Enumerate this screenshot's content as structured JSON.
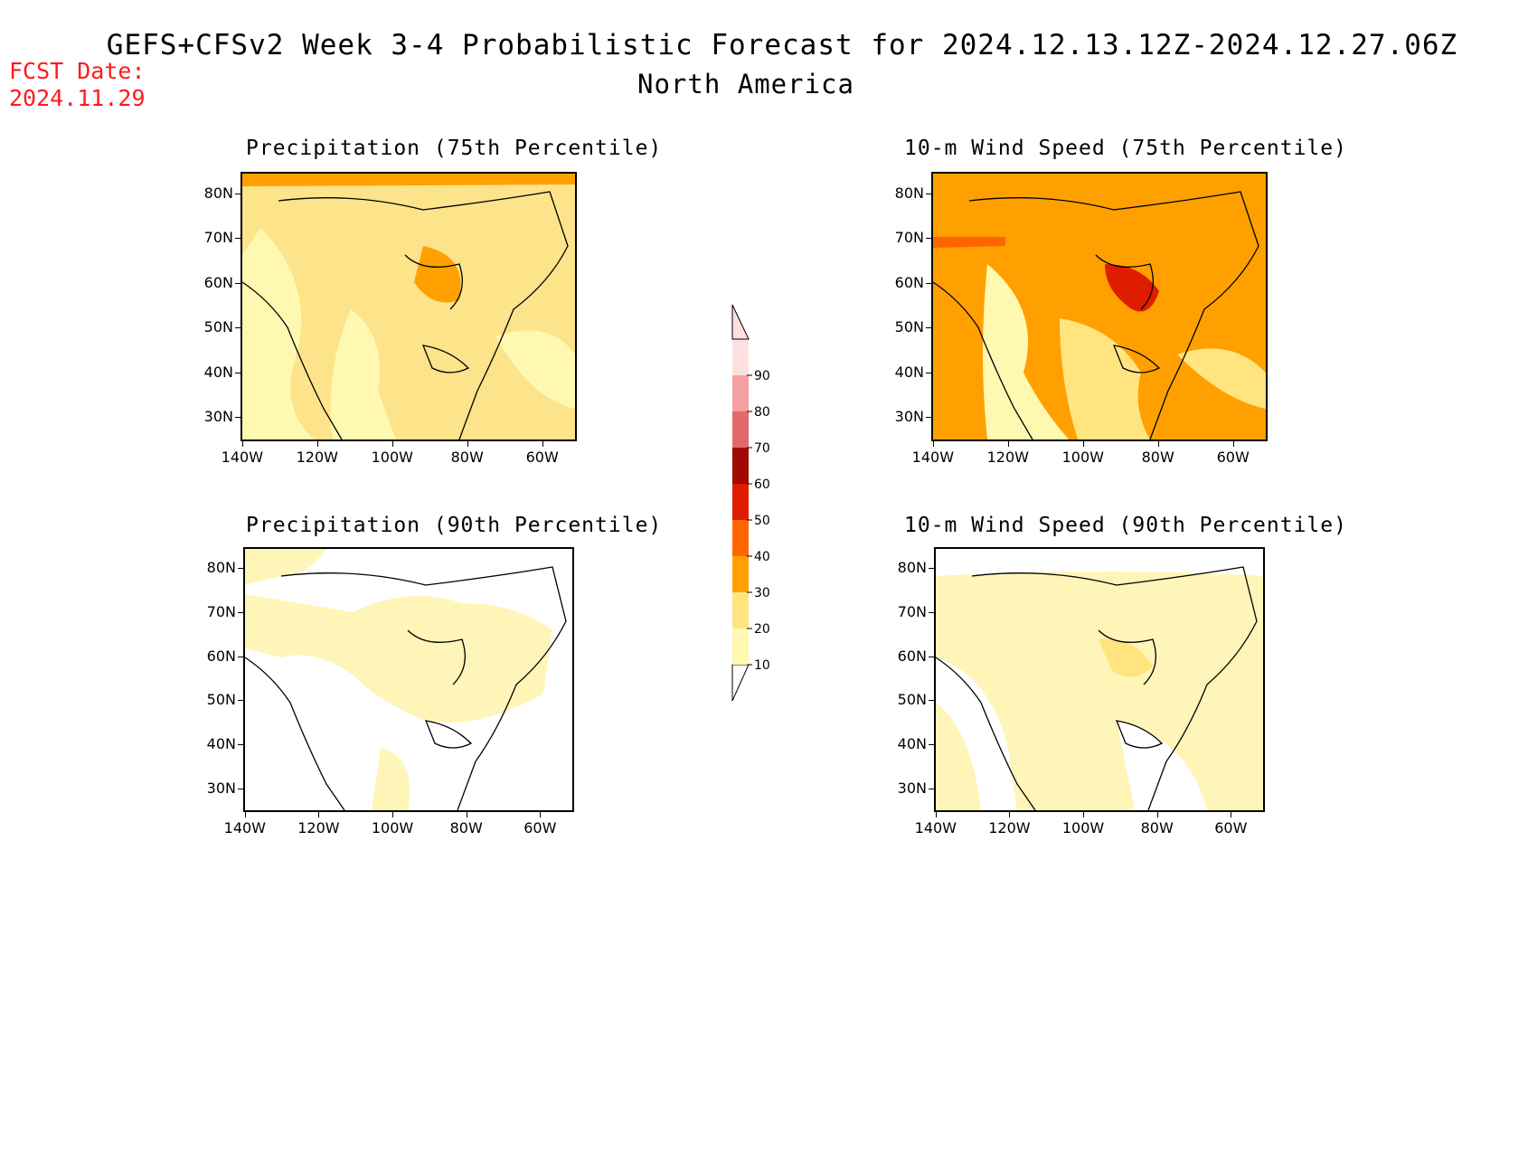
{
  "header": {
    "title": "GEFS+CFSv2 Week 3-4 Probabilistic Forecast for 2024.12.13.12Z-2024.12.27.06Z",
    "subtitle": "North America",
    "fcst_label": "FCST Date:",
    "fcst_date": "2024.11.29"
  },
  "panels": [
    {
      "title": "Precipitation (75th Percentile)",
      "lat_labels": [
        "80N",
        "70N",
        "60N",
        "50N",
        "40N",
        "30N"
      ],
      "lon_labels": [
        "140W",
        "120W",
        "100W",
        "80W",
        "60W"
      ],
      "base_color": "#fde38a"
    },
    {
      "title": "10-m Wind Speed (75th Percentile)",
      "lat_labels": [
        "80N",
        "70N",
        "60N",
        "50N",
        "40N",
        "30N"
      ],
      "lon_labels": [
        "140W",
        "120W",
        "100W",
        "80W",
        "60W"
      ],
      "base_color": "#ffa500"
    },
    {
      "title": "Precipitation (90th Percentile)",
      "lat_labels": [
        "80N",
        "70N",
        "60N",
        "50N",
        "40N",
        "30N"
      ],
      "lon_labels": [
        "140W",
        "120W",
        "100W",
        "80W",
        "60W"
      ],
      "base_color": "#ffffff"
    },
    {
      "title": "10-m Wind Speed (90th Percentile)",
      "lat_labels": [
        "80N",
        "70N",
        "60N",
        "50N",
        "40N",
        "30N"
      ],
      "lon_labels": [
        "140W",
        "120W",
        "100W",
        "80W",
        "60W"
      ],
      "base_color": "#fff5b8"
    }
  ],
  "colorbar": {
    "labels": [
      "10",
      "20",
      "30",
      "40",
      "50",
      "60",
      "70",
      "80",
      "90"
    ],
    "colors": [
      "#fff8b0",
      "#ffe480",
      "#ffa000",
      "#ff6400",
      "#e01c00",
      "#a00a00",
      "#e06a6a",
      "#f5a0a0",
      "#ffe0e0"
    ]
  },
  "colors": {
    "fcst_text": "#ff1a1a",
    "level_10_20": "#fff8b0",
    "level_20_30": "#ffe480",
    "level_30_40": "#ffa000",
    "level_40_50": "#ff6400",
    "level_50_60": "#e01c00"
  }
}
